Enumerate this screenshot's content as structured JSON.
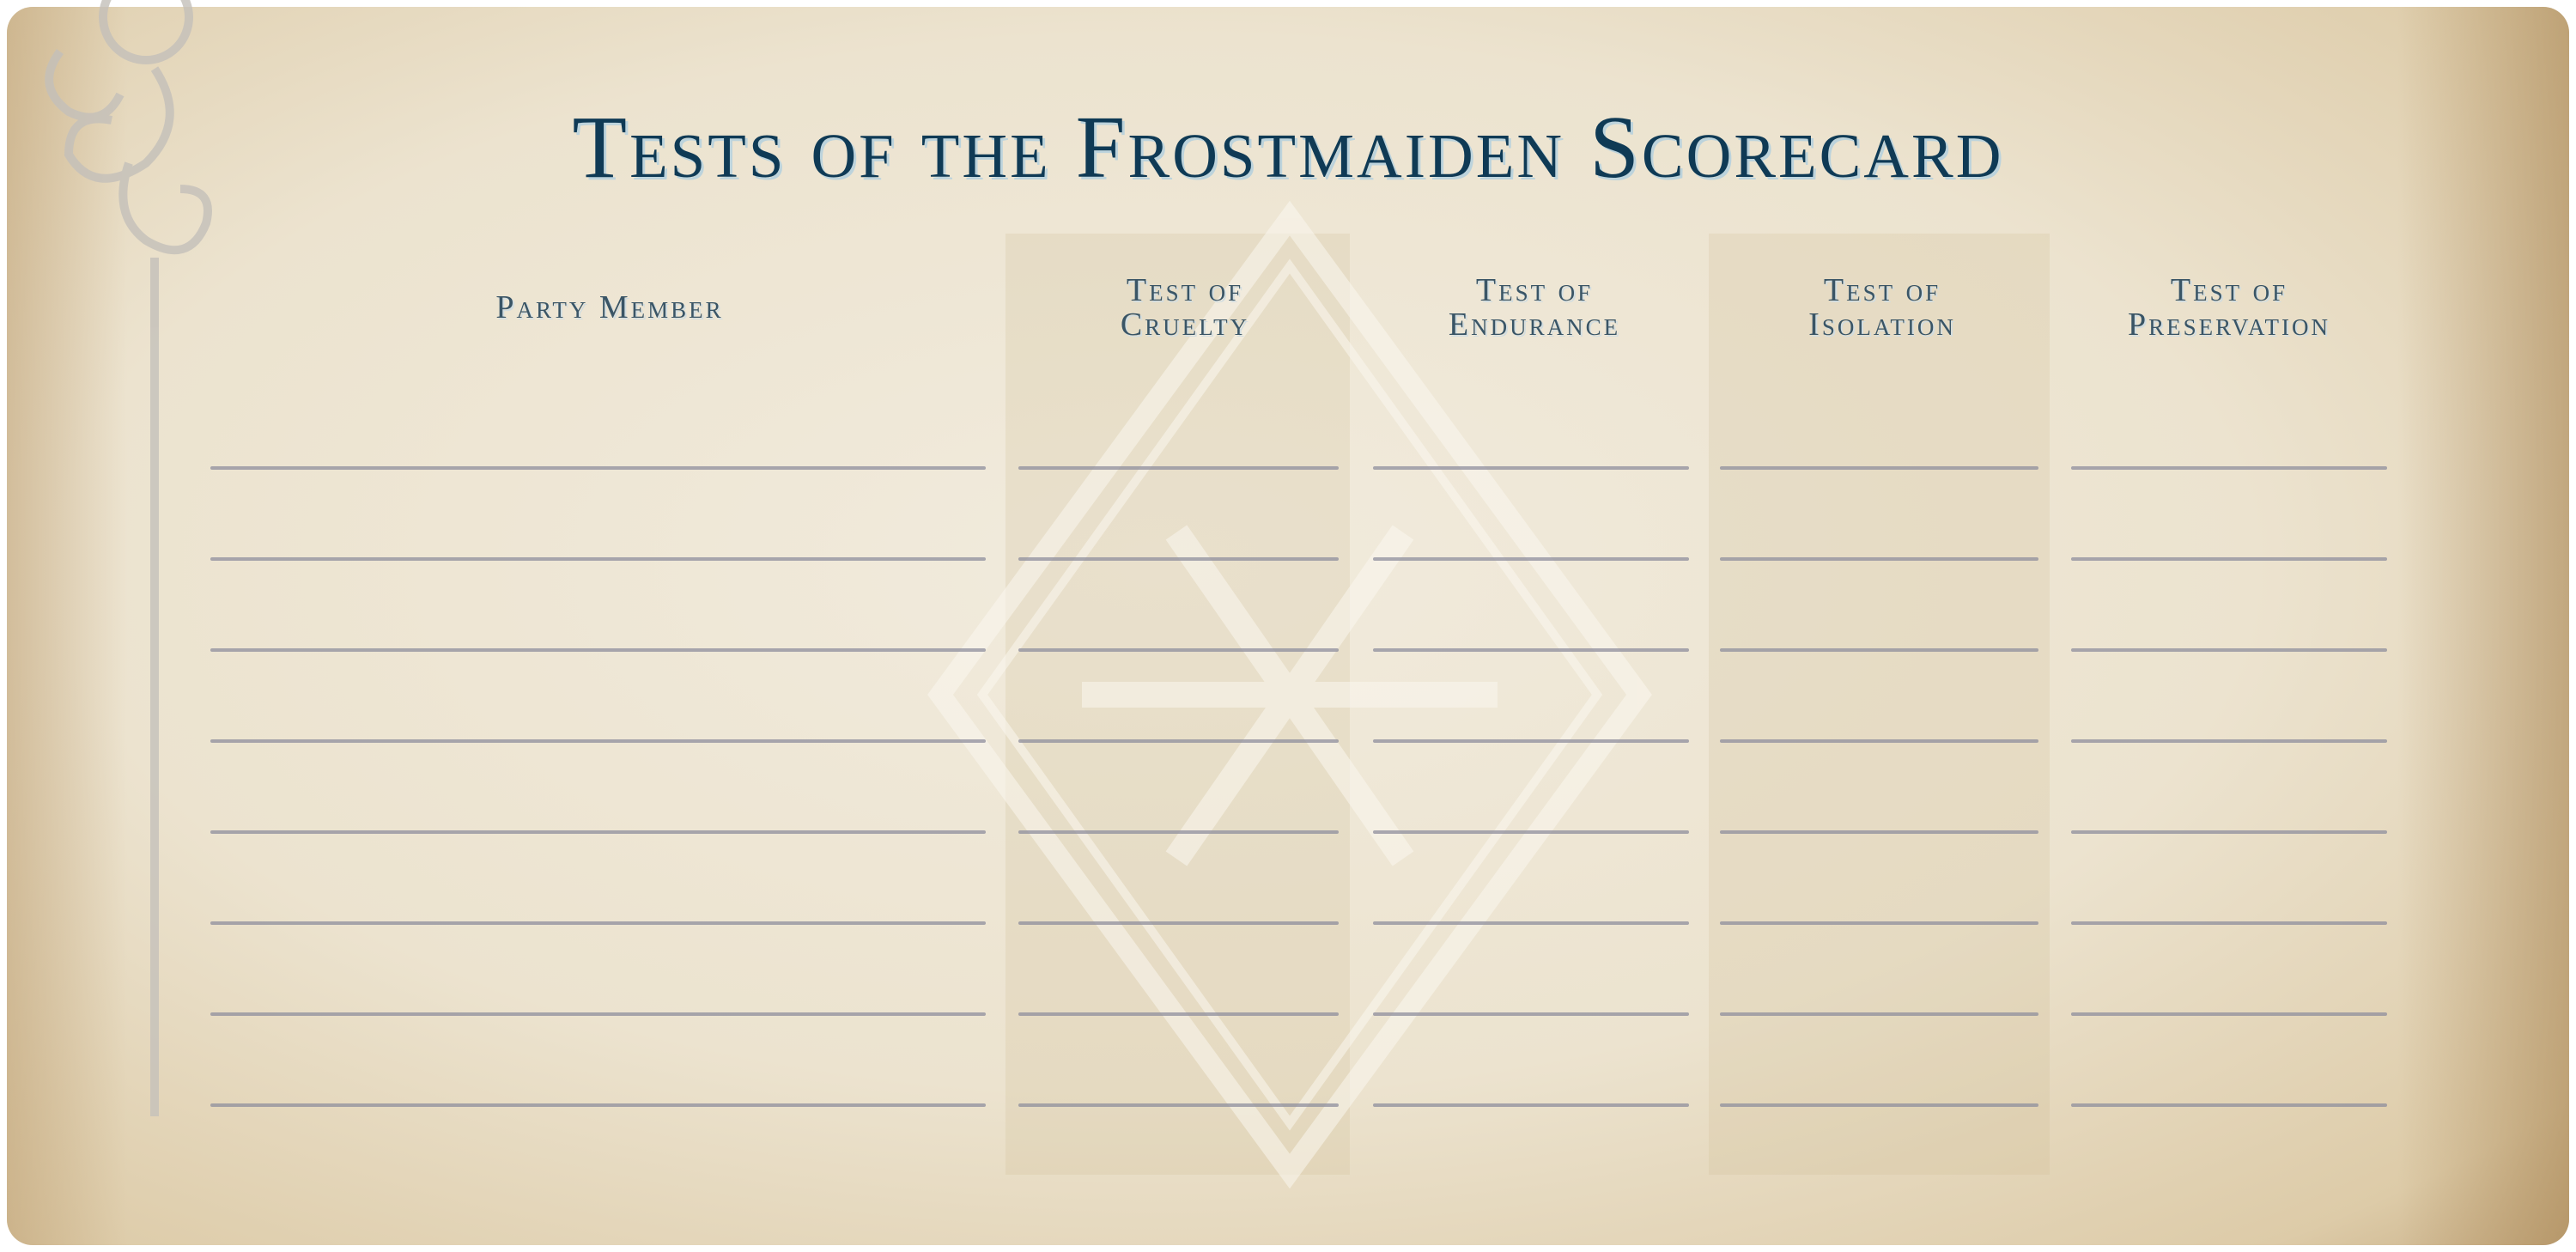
{
  "title": "Tests of the Frostmaiden Scorecard",
  "columns": [
    {
      "line1": "Party Member",
      "line2": ""
    },
    {
      "line1": "Test of",
      "line2": "Cruelty"
    },
    {
      "line1": "Test of",
      "line2": "Endurance"
    },
    {
      "line1": "Test of",
      "line2": "Isolation"
    },
    {
      "line1": "Test of",
      "line2": "Preservation"
    }
  ],
  "row_count": 8,
  "colors": {
    "title": "#0f3a55",
    "header": "#3a5566",
    "paper": "#ece3cf",
    "rule": "#8e8d9c"
  },
  "decorations": [
    "filigree-ornament",
    "snowflake-diamond-emblem"
  ]
}
